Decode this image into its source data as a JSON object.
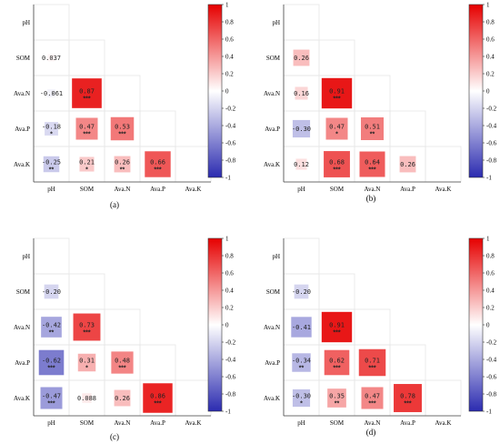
{
  "labels": [
    "pH",
    "SOM",
    "Ava.N",
    "Ava.P",
    "Ava.K"
  ],
  "colors": {
    "negative": "#2b2bb0",
    "neutral": "#ffffff",
    "positive": "#e60000",
    "grid": "#e6e6e6"
  },
  "colorbar": {
    "ticks": [
      "1",
      "0.8",
      "0.6",
      "0.4",
      "0.2",
      "0",
      "-0.2",
      "-0.4",
      "-0.6",
      "-0.8",
      "-1"
    ]
  },
  "chart_data": [
    {
      "type": "heatmap",
      "caption": "(a)",
      "x": [
        "pH",
        "SOM",
        "Ava.N",
        "Ava.P",
        "Ava.K"
      ],
      "y": [
        "pH",
        "SOM",
        "Ava.N",
        "Ava.P",
        "Ava.K"
      ],
      "range": [
        -1,
        1
      ],
      "cells": [
        {
          "row": 1,
          "col": 0,
          "value": 0.037,
          "label": "0.037",
          "sig": ""
        },
        {
          "row": 2,
          "col": 0,
          "value": -0.061,
          "label": "-0.061",
          "sig": ""
        },
        {
          "row": 2,
          "col": 1,
          "value": 0.87,
          "label": "0.87",
          "sig": "***"
        },
        {
          "row": 3,
          "col": 0,
          "value": -0.18,
          "label": "-0.18",
          "sig": "*"
        },
        {
          "row": 3,
          "col": 1,
          "value": 0.47,
          "label": "0.47",
          "sig": "***"
        },
        {
          "row": 3,
          "col": 2,
          "value": 0.53,
          "label": "0.53",
          "sig": "***"
        },
        {
          "row": 4,
          "col": 0,
          "value": -0.25,
          "label": "-0.25",
          "sig": "**"
        },
        {
          "row": 4,
          "col": 1,
          "value": 0.21,
          "label": "0.21",
          "sig": "*"
        },
        {
          "row": 4,
          "col": 2,
          "value": 0.26,
          "label": "0.26",
          "sig": "**"
        },
        {
          "row": 4,
          "col": 3,
          "value": 0.66,
          "label": "0.66",
          "sig": "***"
        }
      ]
    },
    {
      "type": "heatmap",
      "caption": "(b)",
      "x": [
        "pH",
        "SOM",
        "Ava.N",
        "Ava.P",
        "Ava.K"
      ],
      "y": [
        "pH",
        "SOM",
        "Ava.N",
        "Ava.P",
        "Ava.K"
      ],
      "range": [
        -1,
        1
      ],
      "cells": [
        {
          "row": 1,
          "col": 0,
          "value": 0.26,
          "label": "0.26",
          "sig": ""
        },
        {
          "row": 2,
          "col": 0,
          "value": 0.16,
          "label": "0.16",
          "sig": ""
        },
        {
          "row": 2,
          "col": 1,
          "value": 0.91,
          "label": "0.91",
          "sig": "***"
        },
        {
          "row": 3,
          "col": 0,
          "value": -0.3,
          "label": "-0.30",
          "sig": ""
        },
        {
          "row": 3,
          "col": 1,
          "value": 0.47,
          "label": "0.47",
          "sig": "*"
        },
        {
          "row": 3,
          "col": 2,
          "value": 0.51,
          "label": "0.51",
          "sig": "**"
        },
        {
          "row": 4,
          "col": 0,
          "value": 0.12,
          "label": "0.12",
          "sig": ""
        },
        {
          "row": 4,
          "col": 1,
          "value": 0.68,
          "label": "0.68",
          "sig": "***"
        },
        {
          "row": 4,
          "col": 2,
          "value": 0.64,
          "label": "0.64",
          "sig": "***"
        },
        {
          "row": 4,
          "col": 3,
          "value": 0.26,
          "label": "0.26",
          "sig": ""
        }
      ]
    },
    {
      "type": "heatmap",
      "caption": "(c)",
      "x": [
        "pH",
        "SOM",
        "Ava.N",
        "Ava.P",
        "Ava.K"
      ],
      "y": [
        "pH",
        "SOM",
        "Ava.N",
        "Ava.P",
        "Ava.K"
      ],
      "range": [
        -1,
        1
      ],
      "cells": [
        {
          "row": 1,
          "col": 0,
          "value": -0.2,
          "label": "-0.20",
          "sig": ""
        },
        {
          "row": 2,
          "col": 0,
          "value": -0.42,
          "label": "-0.42",
          "sig": "**"
        },
        {
          "row": 2,
          "col": 1,
          "value": 0.73,
          "label": "0.73",
          "sig": "***"
        },
        {
          "row": 3,
          "col": 0,
          "value": -0.62,
          "label": "-0.62",
          "sig": "***"
        },
        {
          "row": 3,
          "col": 1,
          "value": 0.31,
          "label": "0.31",
          "sig": "*"
        },
        {
          "row": 3,
          "col": 2,
          "value": 0.48,
          "label": "0.48",
          "sig": "***"
        },
        {
          "row": 4,
          "col": 0,
          "value": -0.47,
          "label": "-0.47",
          "sig": "***"
        },
        {
          "row": 4,
          "col": 1,
          "value": 0.088,
          "label": "0.088",
          "sig": ""
        },
        {
          "row": 4,
          "col": 2,
          "value": 0.26,
          "label": "0.26",
          "sig": ""
        },
        {
          "row": 4,
          "col": 3,
          "value": 0.86,
          "label": "0.86",
          "sig": "***"
        }
      ]
    },
    {
      "type": "heatmap",
      "caption": "(d)",
      "x": [
        "pH",
        "SOM",
        "Ava.N",
        "Ava.P",
        "Ava.K"
      ],
      "y": [
        "pH",
        "SOM",
        "Ava.N",
        "Ava.P",
        "Ava.K"
      ],
      "range": [
        -1,
        1
      ],
      "cells": [
        {
          "row": 1,
          "col": 0,
          "value": -0.2,
          "label": "-0.20",
          "sig": ""
        },
        {
          "row": 2,
          "col": 0,
          "value": -0.41,
          "label": "-0.41",
          "sig": ""
        },
        {
          "row": 2,
          "col": 1,
          "value": 0.91,
          "label": "0.91",
          "sig": "***"
        },
        {
          "row": 3,
          "col": 0,
          "value": -0.34,
          "label": "-0.34",
          "sig": "**"
        },
        {
          "row": 3,
          "col": 1,
          "value": 0.62,
          "label": "0.62",
          "sig": "***"
        },
        {
          "row": 3,
          "col": 2,
          "value": 0.71,
          "label": "0.71",
          "sig": "***"
        },
        {
          "row": 4,
          "col": 0,
          "value": -0.3,
          "label": "-0.30",
          "sig": "*"
        },
        {
          "row": 4,
          "col": 1,
          "value": 0.35,
          "label": "0.35",
          "sig": "**"
        },
        {
          "row": 4,
          "col": 2,
          "value": 0.47,
          "label": "0.47",
          "sig": "***"
        },
        {
          "row": 4,
          "col": 3,
          "value": 0.78,
          "label": "0.78",
          "sig": "***"
        }
      ]
    }
  ]
}
